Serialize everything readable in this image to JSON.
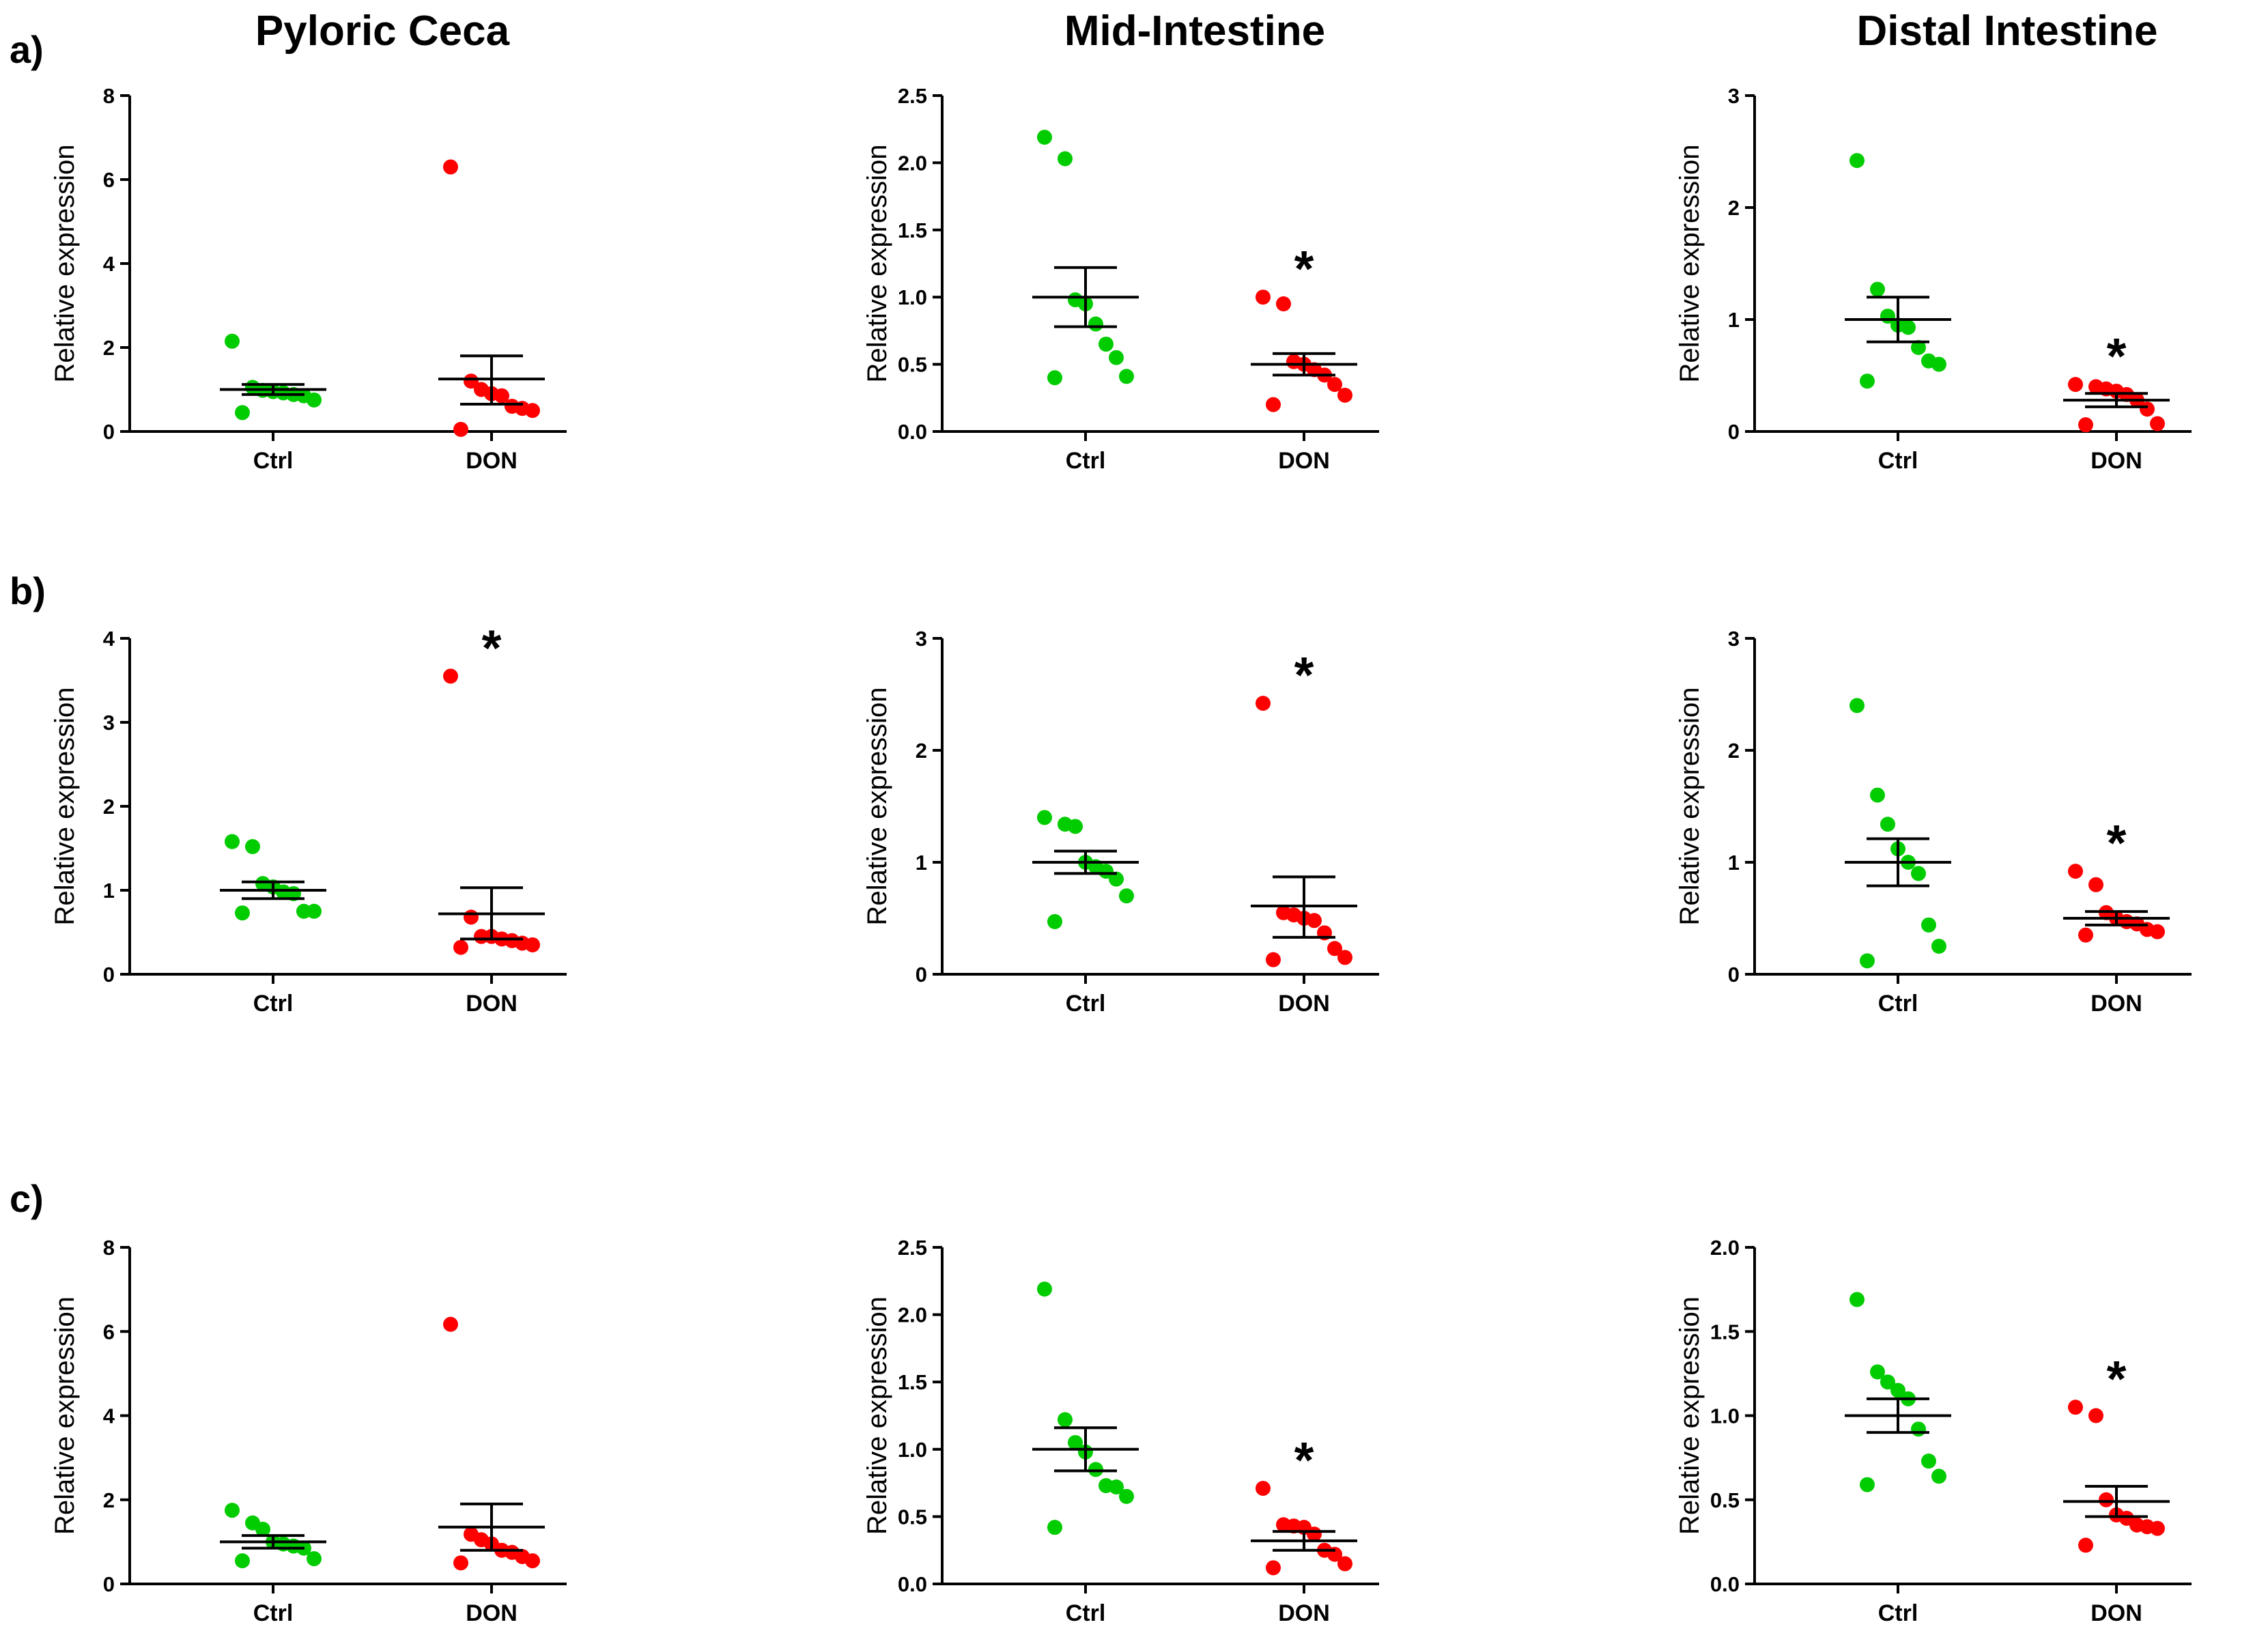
{
  "column_titles": [
    "Pyloric Ceca",
    "Mid-Intestine",
    "Distal Intestine"
  ],
  "row_labels": [
    "a)",
    "b)",
    "c)"
  ],
  "colors": {
    "ctrl": "#00cc00",
    "don": "#ff0000",
    "axis": "#000000"
  },
  "chart_data": [
    {
      "type": "scatter",
      "panel": "a-pyloric-ceca",
      "title": "Pyloric Ceca",
      "ylabel": "Relative expression",
      "categories": [
        "Ctrl",
        "DON"
      ],
      "ylim": [
        0,
        8
      ],
      "yticks": [
        "0",
        "2",
        "4",
        "6",
        "8"
      ],
      "ytick_values": [
        0,
        2,
        4,
        6,
        8
      ],
      "series": [
        {
          "name": "Ctrl",
          "values": [
            2.15,
            1.05,
            0.98,
            0.95,
            0.92,
            0.88,
            0.85,
            0.75,
            0.45
          ],
          "mean": 1.0,
          "sem_low": 0.88,
          "sem_high": 1.12
        },
        {
          "name": "DON",
          "values": [
            6.3,
            1.2,
            1.0,
            0.9,
            0.85,
            0.6,
            0.55,
            0.5,
            0.05
          ],
          "mean": 1.25,
          "sem_low": 0.65,
          "sem_high": 1.8
        }
      ],
      "significant": false
    },
    {
      "type": "scatter",
      "panel": "a-mid-intestine",
      "title": "Mid-Intestine",
      "ylabel": "Relative expression",
      "categories": [
        "Ctrl",
        "DON"
      ],
      "ylim": [
        0,
        2.5
      ],
      "yticks": [
        "0.0",
        "0.5",
        "1.0",
        "1.5",
        "2.0",
        "2.5"
      ],
      "ytick_values": [
        0,
        0.5,
        1.0,
        1.5,
        2.0,
        2.5
      ],
      "series": [
        {
          "name": "Ctrl",
          "values": [
            2.19,
            2.03,
            0.98,
            0.95,
            0.8,
            0.65,
            0.55,
            0.41,
            0.4
          ],
          "mean": 1.0,
          "sem_low": 0.78,
          "sem_high": 1.22
        },
        {
          "name": "DON",
          "values": [
            1.0,
            0.95,
            0.52,
            0.5,
            0.46,
            0.42,
            0.35,
            0.27,
            0.2
          ],
          "mean": 0.5,
          "sem_low": 0.42,
          "sem_high": 0.58
        },
        {
          "name": "DON-significance",
          "marker": "*"
        }
      ],
      "significant": true,
      "significance_marker": "*"
    },
    {
      "type": "scatter",
      "panel": "a-distal-intestine",
      "title": "Distal Intestine",
      "ylabel": "Relative expression",
      "categories": [
        "Ctrl",
        "DON"
      ],
      "ylim": [
        0,
        3
      ],
      "yticks": [
        "0",
        "1",
        "2",
        "3"
      ],
      "ytick_values": [
        0,
        1,
        2,
        3
      ],
      "series": [
        {
          "name": "Ctrl",
          "values": [
            2.42,
            1.27,
            1.03,
            0.95,
            0.93,
            0.75,
            0.63,
            0.6,
            0.45
          ],
          "mean": 1.0,
          "sem_low": 0.8,
          "sem_high": 1.2
        },
        {
          "name": "DON",
          "values": [
            0.42,
            0.4,
            0.38,
            0.36,
            0.33,
            0.28,
            0.2,
            0.07,
            0.06
          ],
          "mean": 0.28,
          "sem_low": 0.22,
          "sem_high": 0.34
        }
      ],
      "significant": true,
      "significance_marker": "*"
    },
    {
      "type": "scatter",
      "panel": "b-pyloric-ceca",
      "title": "Pyloric Ceca",
      "ylabel": "Relative expression",
      "categories": [
        "Ctrl",
        "DON"
      ],
      "ylim": [
        0,
        4
      ],
      "yticks": [
        "0",
        "1",
        "2",
        "3",
        "4"
      ],
      "ytick_values": [
        0,
        1,
        2,
        3,
        4
      ],
      "series": [
        {
          "name": "Ctrl",
          "values": [
            1.58,
            1.52,
            1.08,
            1.04,
            0.98,
            0.96,
            0.75,
            0.75,
            0.73
          ],
          "mean": 1.0,
          "sem_low": 0.9,
          "sem_high": 1.1
        },
        {
          "name": "DON",
          "values": [
            3.55,
            0.68,
            0.45,
            0.45,
            0.42,
            0.4,
            0.37,
            0.35,
            0.32
          ],
          "mean": 0.72,
          "sem_low": 0.42,
          "sem_high": 1.03
        }
      ],
      "significant": true,
      "significance_marker": "*"
    },
    {
      "type": "scatter",
      "panel": "b-mid-intestine",
      "title": "Mid-Intestine",
      "ylabel": "Relative expression",
      "categories": [
        "Ctrl",
        "DON"
      ],
      "ylim": [
        0,
        3
      ],
      "yticks": [
        "0",
        "1",
        "2",
        "3"
      ],
      "ytick_values": [
        0,
        1,
        2,
        3
      ],
      "series": [
        {
          "name": "Ctrl",
          "values": [
            1.4,
            1.34,
            1.32,
            1.0,
            0.96,
            0.92,
            0.85,
            0.7,
            0.47
          ],
          "mean": 1.0,
          "sem_low": 0.9,
          "sem_high": 1.1
        },
        {
          "name": "DON",
          "values": [
            2.42,
            0.55,
            0.53,
            0.5,
            0.48,
            0.37,
            0.23,
            0.15,
            0.13
          ],
          "mean": 0.61,
          "sem_low": 0.33,
          "sem_high": 0.87
        }
      ],
      "significant": true,
      "significance_marker": "*"
    },
    {
      "type": "scatter",
      "panel": "b-distal-intestine",
      "title": "Distal Intestine",
      "ylabel": "Relative expression",
      "categories": [
        "Ctrl",
        "DON"
      ],
      "ylim": [
        0,
        3
      ],
      "yticks": [
        "0",
        "1",
        "2",
        "3"
      ],
      "ytick_values": [
        0,
        1,
        2,
        3
      ],
      "series": [
        {
          "name": "Ctrl",
          "values": [
            2.4,
            1.6,
            1.34,
            1.12,
            1.0,
            0.9,
            0.44,
            0.25,
            0.12
          ],
          "mean": 1.0,
          "sem_low": 0.79,
          "sem_high": 1.21
        },
        {
          "name": "DON",
          "values": [
            0.92,
            0.8,
            0.55,
            0.5,
            0.47,
            0.45,
            0.4,
            0.38,
            0.35
          ],
          "mean": 0.5,
          "sem_low": 0.44,
          "sem_high": 0.56
        }
      ],
      "significant": true,
      "significance_marker": "*"
    },
    {
      "type": "scatter",
      "panel": "c-pyloric-ceca",
      "title": "Pyloric Ceca",
      "ylabel": "Relative expression",
      "categories": [
        "Ctrl",
        "DON"
      ],
      "ylim": [
        0,
        8
      ],
      "yticks": [
        "0",
        "2",
        "4",
        "6",
        "8"
      ],
      "ytick_values": [
        0,
        2,
        4,
        6,
        8
      ],
      "series": [
        {
          "name": "Ctrl",
          "values": [
            1.75,
            1.45,
            1.3,
            1.0,
            0.95,
            0.9,
            0.85,
            0.6,
            0.55
          ],
          "mean": 1.0,
          "sem_low": 0.85,
          "sem_high": 1.15
        },
        {
          "name": "DON",
          "values": [
            6.17,
            1.18,
            1.05,
            0.95,
            0.8,
            0.75,
            0.65,
            0.55,
            0.5
          ],
          "mean": 1.35,
          "sem_low": 0.8,
          "sem_high": 1.9
        }
      ],
      "significant": false
    },
    {
      "type": "scatter",
      "panel": "c-mid-intestine",
      "title": "Mid-Intestine",
      "ylabel": "Relative expression",
      "categories": [
        "Ctrl",
        "DON"
      ],
      "ylim": [
        0,
        2.5
      ],
      "yticks": [
        "0.0",
        "0.5",
        "1.0",
        "1.5",
        "2.0",
        "2.5"
      ],
      "ytick_values": [
        0,
        0.5,
        1.0,
        1.5,
        2.0,
        2.5
      ],
      "series": [
        {
          "name": "Ctrl",
          "values": [
            2.19,
            1.22,
            1.05,
            0.98,
            0.85,
            0.73,
            0.72,
            0.65,
            0.42
          ],
          "mean": 1.0,
          "sem_low": 0.84,
          "sem_high": 1.16
        },
        {
          "name": "DON",
          "values": [
            0.71,
            0.44,
            0.43,
            0.42,
            0.37,
            0.25,
            0.22,
            0.15,
            0.12
          ],
          "mean": 0.32,
          "sem_low": 0.25,
          "sem_high": 0.39
        }
      ],
      "significant": true,
      "significance_marker": "*"
    },
    {
      "type": "scatter",
      "panel": "c-distal-intestine",
      "title": "Distal Intestine",
      "ylabel": "Relative expression",
      "categories": [
        "Ctrl",
        "DON"
      ],
      "ylim": [
        0,
        2.0
      ],
      "yticks": [
        "0.0",
        "0.5",
        "1.0",
        "1.5",
        "2.0"
      ],
      "ytick_values": [
        0,
        0.5,
        1.0,
        1.5,
        2.0
      ],
      "series": [
        {
          "name": "Ctrl",
          "values": [
            1.69,
            1.26,
            1.2,
            1.15,
            1.1,
            0.92,
            0.73,
            0.64,
            0.59
          ],
          "mean": 1.0,
          "sem_low": 0.9,
          "sem_high": 1.1
        },
        {
          "name": "DON",
          "values": [
            1.05,
            1.0,
            0.5,
            0.41,
            0.39,
            0.35,
            0.34,
            0.33,
            0.23
          ],
          "mean": 0.49,
          "sem_low": 0.4,
          "sem_high": 0.58
        }
      ],
      "significant": true,
      "significance_marker": "*"
    }
  ]
}
